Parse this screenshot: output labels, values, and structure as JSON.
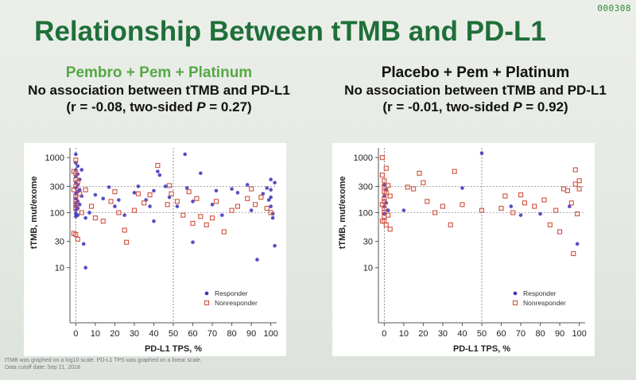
{
  "counter": "000308",
  "title": "Relationship Between tTMB and PD-L1",
  "left_panel": {
    "arm": "Pembro + Pem + Platinum",
    "statement": "No association between tTMB and PD-L1",
    "stat_prefix": "(r = -0.08, two-sided ",
    "stat_p": "P",
    "stat_suffix": " = 0.27)"
  },
  "right_panel": {
    "arm": "Placebo + Pem + Platinum",
    "statement": "No association between tTMB and PD-L1",
    "stat_prefix": "(r = -0.01, two-sided ",
    "stat_p": "P",
    "stat_suffix": " = 0.92)"
  },
  "footnote": {
    "line1": "tTMB was graphed on a log10 scale. PD-L1 TPS was graphed on a linear scale.",
    "line2": "Data cutoff date: Sep 21, 2018"
  },
  "colors": {
    "title": "#1f6f3a",
    "arm_left": "#56a845",
    "responder": "#3b2fb8",
    "nonresponder": "#d0503e"
  },
  "chart_data": [
    {
      "type": "scatter",
      "title": "Pembro + Pem + Platinum",
      "xlabel": "PD-L1 TPS, %",
      "ylabel": "tTMB, mut/exome",
      "yscale": "log10",
      "xlim": [
        -3,
        103
      ],
      "ylim": [
        1,
        1500
      ],
      "xticks": [
        0,
        10,
        20,
        30,
        40,
        50,
        60,
        70,
        80,
        90,
        100
      ],
      "yticks": [
        10,
        30,
        100,
        300,
        1000
      ],
      "reference_lines_x": [
        0,
        50
      ],
      "reference_lines_y": [
        100,
        300
      ],
      "legend": [
        "Responder",
        "Nonresponder"
      ],
      "series": [
        {
          "name": "Responder",
          "marker": "filled-circle",
          "points": [
            [
              0,
              1150
            ],
            [
              0,
              800
            ],
            [
              0,
              600
            ],
            [
              0,
              450
            ],
            [
              0,
              350
            ],
            [
              0,
              280
            ],
            [
              0,
              220
            ],
            [
              0,
              180
            ],
            [
              0,
              150
            ],
            [
              0,
              130
            ],
            [
              0,
              110
            ],
            [
              0,
              95
            ],
            [
              0,
              85
            ],
            [
              1,
              700
            ],
            [
              1,
              500
            ],
            [
              1,
              320
            ],
            [
              1,
              240
            ],
            [
              1,
              160
            ],
            [
              1,
              120
            ],
            [
              1,
              90
            ],
            [
              2,
              400
            ],
            [
              2,
              260
            ],
            [
              2,
              140
            ],
            [
              3,
              600
            ],
            [
              3,
              200
            ],
            [
              4,
              27
            ],
            [
              5,
              10
            ],
            [
              5,
              80
            ],
            [
              7,
              100
            ],
            [
              10,
              210
            ],
            [
              14,
              180
            ],
            [
              17,
              290
            ],
            [
              20,
              130
            ],
            [
              22,
              170
            ],
            [
              25,
              90
            ],
            [
              30,
              230
            ],
            [
              32,
              300
            ],
            [
              36,
              170
            ],
            [
              38,
              130
            ],
            [
              40,
              70
            ],
            [
              40,
              250
            ],
            [
              42,
              560
            ],
            [
              43,
              480
            ],
            [
              46,
              300
            ],
            [
              48,
              190
            ],
            [
              52,
              130
            ],
            [
              56,
              1150
            ],
            [
              57,
              280
            ],
            [
              60,
              160
            ],
            [
              60,
              29
            ],
            [
              64,
              520
            ],
            [
              70,
              140
            ],
            [
              72,
              250
            ],
            [
              75,
              90
            ],
            [
              80,
              270
            ],
            [
              83,
              230
            ],
            [
              88,
              320
            ],
            [
              90,
              110
            ],
            [
              93,
              14
            ],
            [
              96,
              220
            ],
            [
              98,
              280
            ],
            [
              99,
              170
            ],
            [
              100,
              400
            ],
            [
              100,
              260
            ],
            [
              100,
              190
            ],
            [
              100,
              130
            ],
            [
              101,
              95
            ],
            [
              101,
              80
            ],
            [
              102,
              350
            ],
            [
              102,
              25
            ]
          ]
        },
        {
          "name": "Nonresponder",
          "marker": "open-square",
          "points": [
            [
              0,
              900
            ],
            [
              0,
              520
            ],
            [
              0,
              400
            ],
            [
              0,
              300
            ],
            [
              0,
              200
            ],
            [
              0,
              170
            ],
            [
              0,
              140
            ],
            [
              0,
              120
            ],
            [
              0,
              40
            ],
            [
              -1,
              560
            ],
            [
              -1,
              260
            ],
            [
              -1,
              42
            ],
            [
              1,
              360
            ],
            [
              1,
              33
            ],
            [
              2,
              220
            ],
            [
              3,
              100
            ],
            [
              5,
              260
            ],
            [
              8,
              130
            ],
            [
              10,
              80
            ],
            [
              14,
              70
            ],
            [
              18,
              160
            ],
            [
              20,
              240
            ],
            [
              22,
              100
            ],
            [
              25,
              48
            ],
            [
              26,
              29
            ],
            [
              30,
              110
            ],
            [
              32,
              220
            ],
            [
              35,
              150
            ],
            [
              38,
              210
            ],
            [
              42,
              720
            ],
            [
              47,
              140
            ],
            [
              48,
              310
            ],
            [
              49,
              220
            ],
            [
              52,
              160
            ],
            [
              55,
              90
            ],
            [
              58,
              240
            ],
            [
              60,
              64
            ],
            [
              62,
              180
            ],
            [
              64,
              85
            ],
            [
              67,
              60
            ],
            [
              70,
              80
            ],
            [
              72,
              160
            ],
            [
              76,
              45
            ],
            [
              80,
              110
            ],
            [
              83,
              130
            ],
            [
              88,
              180
            ],
            [
              90,
              270
            ],
            [
              92,
              140
            ],
            [
              95,
              190
            ],
            [
              98,
              120
            ],
            [
              100,
              100
            ]
          ]
        }
      ]
    },
    {
      "type": "scatter",
      "title": "Placebo + Pem + Platinum",
      "xlabel": "PD-L1 TPS, %",
      "ylabel": "tTMB, mut/exome",
      "yscale": "log10",
      "xlim": [
        -3,
        103
      ],
      "ylim": [
        1,
        1500
      ],
      "xticks": [
        0,
        10,
        20,
        30,
        40,
        50,
        60,
        70,
        80,
        90,
        100
      ],
      "yticks": [
        10,
        30,
        100,
        300,
        1000
      ],
      "reference_lines_x": [
        0,
        50
      ],
      "reference_lines_y": [
        100,
        300
      ],
      "legend": [
        "Responder",
        "Nonresponder"
      ],
      "series": [
        {
          "name": "Responder",
          "marker": "filled-circle",
          "points": [
            [
              0,
              320
            ],
            [
              0,
              200
            ],
            [
              0,
              130
            ],
            [
              0,
              95
            ],
            [
              1,
              260
            ],
            [
              1,
              150
            ],
            [
              2,
              110
            ],
            [
              10,
              110
            ],
            [
              40,
              280
            ],
            [
              50,
              1200
            ],
            [
              65,
              130
            ],
            [
              70,
              90
            ],
            [
              80,
              95
            ],
            [
              95,
              130
            ],
            [
              99,
              27
            ]
          ]
        },
        {
          "name": "Nonresponder",
          "marker": "open-square",
          "points": [
            [
              -1,
              1000
            ],
            [
              -1,
              480
            ],
            [
              -1,
              140
            ],
            [
              -1,
              70
            ],
            [
              0,
              380
            ],
            [
              0,
              300
            ],
            [
              0,
              240
            ],
            [
              0,
              180
            ],
            [
              0,
              160
            ],
            [
              0,
              120
            ],
            [
              0,
              100
            ],
            [
              0,
              85
            ],
            [
              0,
              70
            ],
            [
              1,
              640
            ],
            [
              1,
              230
            ],
            [
              1,
              60
            ],
            [
              2,
              310
            ],
            [
              2,
              90
            ],
            [
              3,
              200
            ],
            [
              3,
              50
            ],
            [
              12,
              290
            ],
            [
              15,
              270
            ],
            [
              18,
              520
            ],
            [
              20,
              350
            ],
            [
              22,
              160
            ],
            [
              26,
              100
            ],
            [
              30,
              130
            ],
            [
              34,
              60
            ],
            [
              36,
              560
            ],
            [
              40,
              140
            ],
            [
              50,
              110
            ],
            [
              60,
              120
            ],
            [
              62,
              200
            ],
            [
              66,
              100
            ],
            [
              70,
              210
            ],
            [
              72,
              150
            ],
            [
              77,
              130
            ],
            [
              82,
              170
            ],
            [
              85,
              60
            ],
            [
              88,
              110
            ],
            [
              90,
              45
            ],
            [
              92,
              270
            ],
            [
              94,
              250
            ],
            [
              96,
              150
            ],
            [
              97,
              18
            ],
            [
              98,
              600
            ],
            [
              98,
              330
            ],
            [
              99,
              95
            ],
            [
              100,
              270
            ],
            [
              100,
              380
            ]
          ]
        }
      ]
    }
  ]
}
